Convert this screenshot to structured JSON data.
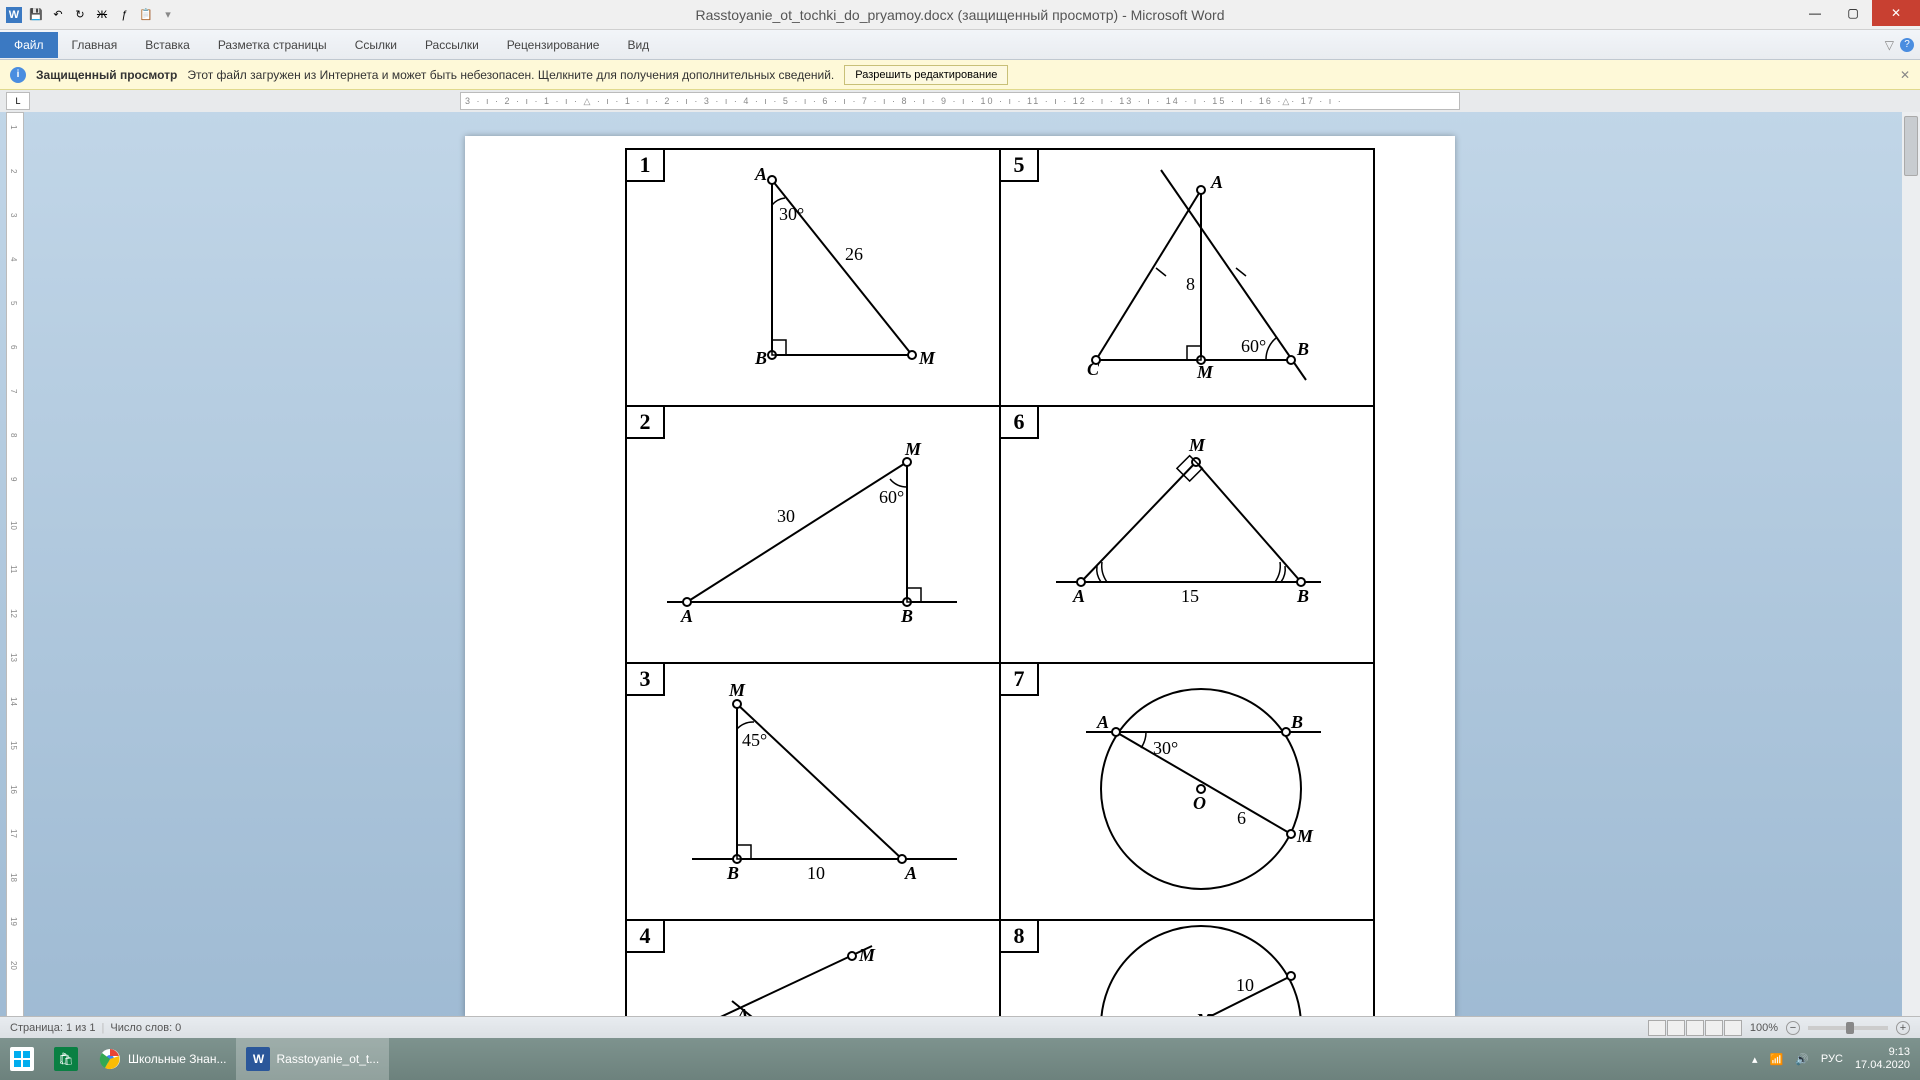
{
  "title": "Rasstoyanie_ot_tochki_do_pryamoy.docx (защищенный просмотр) - Microsoft Word",
  "ribbon": {
    "file": "Файл",
    "tabs": [
      "Главная",
      "Вставка",
      "Разметка страницы",
      "Ссылки",
      "Рассылки",
      "Рецензирование",
      "Вид"
    ]
  },
  "protected": {
    "title": "Защищенный просмотр",
    "text": "Этот файл загружен из Интернета и может быть небезопасен. Щелкните для получения дополнительных сведений.",
    "button": "Разрешить редактирование"
  },
  "ruler_h": "3 · ı · 2 · ı · 1 · ı · △ · ı · 1 · ı · 2 · ı · 3 · ı · 4 · ı · 5 · ı · 6 · ı · 7 · ı · 8 · ı · 9 · ı · 10 · ı · 11 · ı · 12 · ı · 13 · ı · 14 · ı · 15 · ı · 16 ·△· 17 · ı ·",
  "ruler_v": [
    1,
    2,
    3,
    4,
    5,
    6,
    7,
    8,
    9,
    10,
    11,
    12,
    13,
    14,
    15,
    16,
    17,
    18,
    19,
    20
  ],
  "cells": {
    "c1": {
      "n": "1",
      "labels": {
        "A": "A",
        "B": "B",
        "M": "M",
        "angle": "30°",
        "side": "26"
      }
    },
    "c2": {
      "n": "2",
      "labels": {
        "A": "A",
        "B": "B",
        "M": "M",
        "angle": "60°",
        "side": "30"
      }
    },
    "c3": {
      "n": "3",
      "labels": {
        "A": "A",
        "B": "B",
        "M": "M",
        "angle": "45°",
        "side": "10"
      }
    },
    "c4": {
      "n": "4",
      "labels": {
        "A": "A",
        "M": "M"
      }
    },
    "c5": {
      "n": "5",
      "labels": {
        "A": "A",
        "B": "B",
        "C": "C",
        "M": "M",
        "angle": "60°",
        "side": "8"
      }
    },
    "c6": {
      "n": "6",
      "labels": {
        "A": "A",
        "B": "B",
        "M": "M",
        "side": "15"
      }
    },
    "c7": {
      "n": "7",
      "labels": {
        "A": "A",
        "B": "B",
        "M": "M",
        "O": "O",
        "angle": "30°",
        "side": "6"
      }
    },
    "c8": {
      "n": "8",
      "labels": {
        "M": "M",
        "side": "10"
      }
    }
  },
  "status": {
    "page": "Страница: 1 из 1",
    "words": "Число слов: 0",
    "zoom": "100%"
  },
  "taskbar": {
    "chrome": "Школьные Знан...",
    "word": "Rasstoyanie_ot_t...",
    "lang": "РУС",
    "time": "9:13",
    "date": "17.04.2020"
  },
  "colors": {
    "file_tab": "#3b79c2",
    "close": "#c84031",
    "pv_bg": "#fef9d8"
  }
}
